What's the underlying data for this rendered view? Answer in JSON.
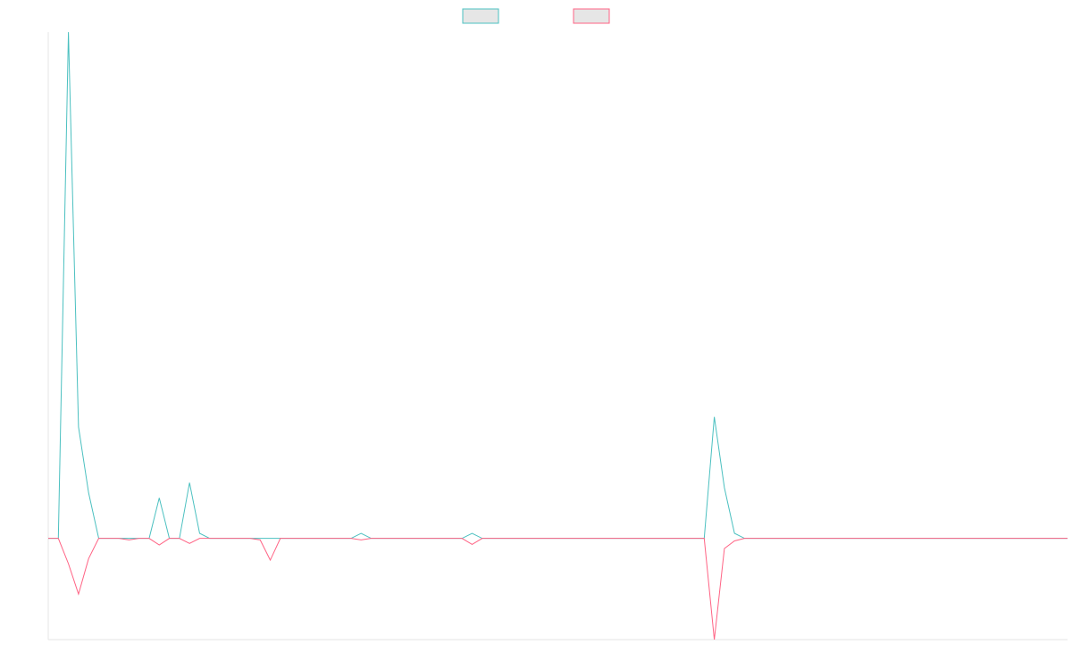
{
  "chart_data": {
    "type": "line",
    "title": "",
    "xlabel": "",
    "ylabel": "",
    "x": [
      0,
      1,
      2,
      3,
      4,
      5,
      6,
      7,
      8,
      9,
      10,
      11,
      12,
      13,
      14,
      15,
      16,
      17,
      18,
      19,
      20,
      21,
      22,
      23,
      24,
      25,
      26,
      27,
      28,
      29,
      30,
      31,
      32,
      33,
      34,
      35,
      36,
      37,
      38,
      39,
      40,
      41,
      42,
      43,
      44,
      45,
      46,
      47,
      48,
      49,
      50,
      51,
      52,
      53,
      54,
      55,
      56,
      57,
      58,
      59,
      60,
      61,
      62,
      63,
      64,
      65,
      66,
      67,
      68,
      69,
      70,
      71,
      72,
      73,
      74,
      75,
      76,
      77,
      78,
      79,
      80,
      81,
      82,
      83,
      84,
      85,
      86,
      87,
      88,
      89,
      90,
      91,
      92,
      93,
      94,
      95,
      96,
      97,
      98,
      99,
      100,
      101
    ],
    "ylim": [
      -20,
      100
    ],
    "grid": false,
    "legend_position": "top",
    "series": [
      {
        "color": "#4bc0c0",
        "values": [
          0,
          0,
          100,
          22,
          9,
          0,
          0,
          0,
          0,
          0,
          0,
          8,
          0,
          0,
          11,
          1,
          0,
          0,
          0,
          0,
          0,
          0,
          0,
          0,
          0,
          0,
          0,
          0,
          0,
          0,
          0,
          1,
          0,
          0,
          0,
          0,
          0,
          0,
          0,
          0,
          0,
          0,
          1,
          0,
          0,
          0,
          0,
          0,
          0,
          0,
          0,
          0,
          0,
          0,
          0,
          0,
          0,
          0,
          0,
          0,
          0,
          0,
          0,
          0,
          0,
          0,
          24,
          10,
          1,
          0,
          0,
          0,
          0,
          0,
          0,
          0,
          0,
          0,
          0,
          0,
          0,
          0,
          0,
          0,
          0,
          0,
          0,
          0,
          0,
          0,
          0,
          0,
          0,
          0,
          0,
          0,
          0,
          0,
          0,
          0,
          0,
          0
        ]
      },
      {
        "color": "#ff6384",
        "values": [
          0,
          0,
          -5,
          -11,
          -4,
          0,
          0,
          0,
          -0.3,
          0,
          0,
          -1.3,
          0,
          0,
          -1,
          0,
          0,
          0,
          0,
          0,
          0,
          -0.3,
          -4.3,
          0,
          0,
          0,
          0,
          0,
          0,
          0,
          0,
          -0.3,
          0,
          0,
          0,
          0,
          0,
          0,
          0,
          0,
          0,
          0,
          -1.2,
          0,
          0,
          0,
          0,
          0,
          0,
          0,
          0,
          0,
          0,
          0,
          0,
          0,
          0,
          0,
          0,
          0,
          0,
          0,
          0,
          0,
          0,
          0,
          -20,
          -2,
          -0.5,
          0,
          0,
          0,
          0,
          0,
          0,
          0,
          0,
          0,
          0,
          0,
          0,
          0,
          0,
          0,
          0,
          0,
          0,
          0,
          0,
          0,
          0,
          0,
          0,
          0,
          0,
          0,
          0,
          0,
          0,
          0,
          0,
          0
        ]
      }
    ]
  }
}
